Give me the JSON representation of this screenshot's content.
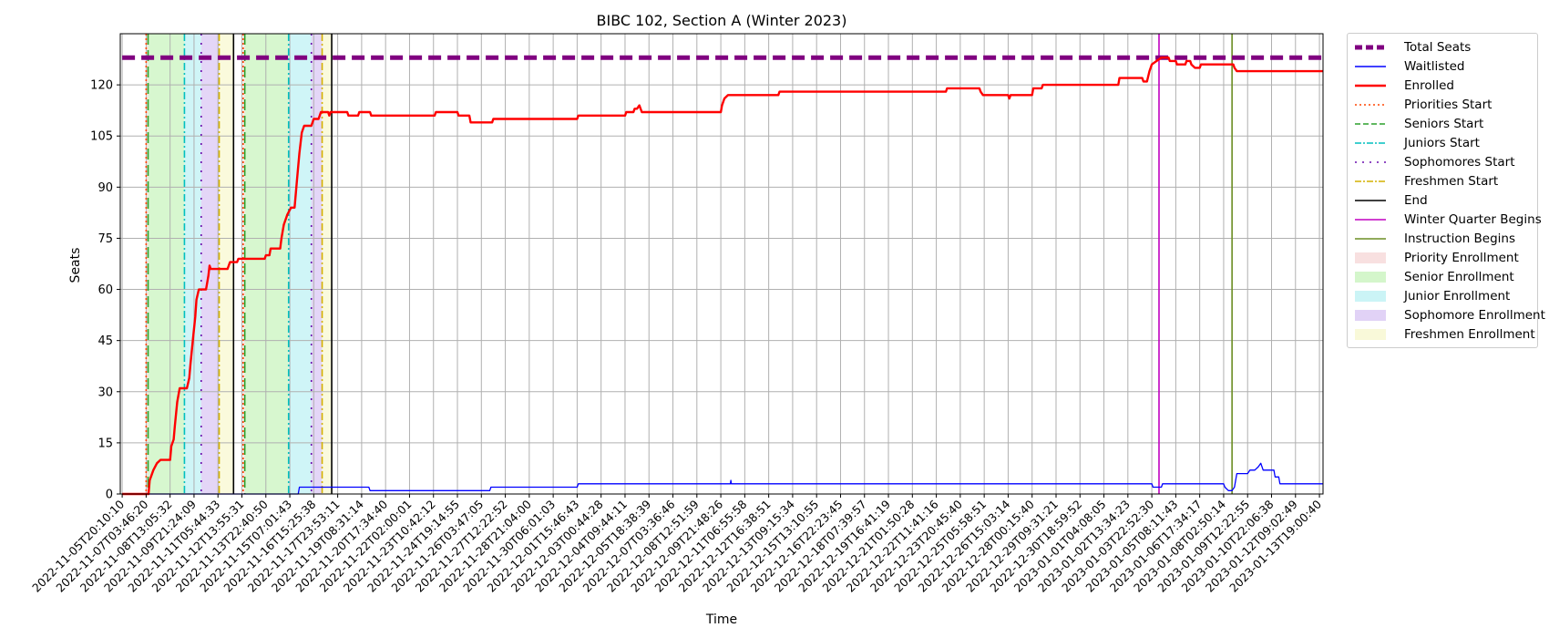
{
  "chart_data": {
    "type": "line",
    "title": "BIBC 102, Section A (Winter 2023)",
    "xlabel": "Time",
    "ylabel": "Seats",
    "ylim": [
      0,
      135
    ],
    "yticks": [
      0,
      15,
      30,
      45,
      60,
      75,
      90,
      105,
      120
    ],
    "grid": true,
    "legend_placement": "outside-right",
    "x_tick_labels": [
      "2022-11-05T20:10:10",
      "2022-11-07T03:46:20",
      "2022-11-08T13:05:32",
      "2022-11-09T21:24:09",
      "2022-11-11T05:44:33",
      "2022-11-12T13:55:31",
      "2022-11-13T22:40:50",
      "2022-11-15T07:01:43",
      "2022-11-16T15:25:38",
      "2022-11-17T23:53:11",
      "2022-11-19T08:31:14",
      "2022-11-20T17:34:40",
      "2022-11-22T02:00:01",
      "2022-11-23T10:42:12",
      "2022-11-24T19:14:55",
      "2022-11-26T03:47:05",
      "2022-11-27T12:22:52",
      "2022-11-28T21:04:00",
      "2022-11-30T06:01:03",
      "2022-12-01T15:46:43",
      "2022-12-03T00:44:28",
      "2022-12-04T09:44:11",
      "2022-12-05T18:38:39",
      "2022-12-07T03:36:46",
      "2022-12-08T12:51:59",
      "2022-12-09T21:48:26",
      "2022-12-11T06:55:58",
      "2022-12-12T16:38:51",
      "2022-12-13T09:15:34",
      "2022-12-15T13:10:55",
      "2022-12-16T22:23:45",
      "2022-12-18T07:39:57",
      "2022-12-19T16:41:19",
      "2022-12-21T01:50:28",
      "2022-12-22T11:41:16",
      "2022-12-23T20:45:40",
      "2022-12-25T05:58:51",
      "2022-12-26T15:03:14",
      "2022-12-28T00:15:40",
      "2022-12-29T09:31:21",
      "2022-12-30T18:59:52",
      "2023-01-01T04:08:05",
      "2023-01-02T13:34:23",
      "2023-01-03T22:52:30",
      "2023-01-05T08:11:43",
      "2023-01-06T17:34:17",
      "2023-01-08T02:50:14",
      "2023-01-09T12:22:55",
      "2023-01-10T22:06:38",
      "2023-01-12T09:02:49",
      "2023-01-13T19:00:40"
    ],
    "x_index_max": 50.15,
    "series": [
      {
        "name": "Total Seats",
        "color": "#800080",
        "style": "dashed",
        "points": [
          [
            0,
            128
          ],
          [
            50.15,
            128
          ]
        ]
      },
      {
        "name": "Waitlisted",
        "color": "#0000ff",
        "style": "solid",
        "points": [
          [
            0,
            0
          ],
          [
            7.35,
            0
          ],
          [
            7.4,
            2
          ],
          [
            10.3,
            2
          ],
          [
            10.35,
            1
          ],
          [
            15.35,
            1
          ],
          [
            15.4,
            2
          ],
          [
            19.0,
            2
          ],
          [
            19.05,
            3
          ],
          [
            25.4,
            3
          ],
          [
            25.42,
            4
          ],
          [
            25.44,
            3
          ],
          [
            43.0,
            3
          ],
          [
            43.05,
            2
          ],
          [
            43.4,
            2
          ],
          [
            43.45,
            3
          ],
          [
            46.0,
            3
          ],
          [
            46.05,
            2
          ],
          [
            46.2,
            1
          ],
          [
            46.35,
            1
          ],
          [
            46.45,
            2
          ],
          [
            46.55,
            6
          ],
          [
            47.0,
            6
          ],
          [
            47.1,
            7
          ],
          [
            47.3,
            7
          ],
          [
            47.45,
            8
          ],
          [
            47.55,
            9
          ],
          [
            47.65,
            7
          ],
          [
            48.1,
            7
          ],
          [
            48.15,
            5
          ],
          [
            48.3,
            5
          ],
          [
            48.35,
            3
          ],
          [
            50.15,
            3
          ]
        ]
      },
      {
        "name": "Enrolled",
        "color": "#ff0000",
        "style": "solid",
        "points": [
          [
            0,
            0
          ],
          [
            1.1,
            0
          ],
          [
            1.15,
            4
          ],
          [
            1.3,
            7
          ],
          [
            1.45,
            9
          ],
          [
            1.6,
            10
          ],
          [
            2.0,
            10
          ],
          [
            2.05,
            14
          ],
          [
            2.15,
            16
          ],
          [
            2.2,
            20
          ],
          [
            2.3,
            27
          ],
          [
            2.4,
            31
          ],
          [
            2.7,
            31
          ],
          [
            2.8,
            34
          ],
          [
            2.85,
            38
          ],
          [
            2.95,
            45
          ],
          [
            3.05,
            52
          ],
          [
            3.1,
            57
          ],
          [
            3.2,
            60
          ],
          [
            3.5,
            60
          ],
          [
            3.6,
            64
          ],
          [
            3.65,
            67
          ],
          [
            3.7,
            66
          ],
          [
            4.05,
            66
          ],
          [
            4.4,
            66
          ],
          [
            4.5,
            68
          ],
          [
            4.8,
            68
          ],
          [
            4.85,
            69
          ],
          [
            5.95,
            69
          ],
          [
            6.0,
            70
          ],
          [
            6.15,
            70
          ],
          [
            6.2,
            72
          ],
          [
            6.6,
            72
          ],
          [
            6.65,
            75
          ],
          [
            6.75,
            79
          ],
          [
            6.9,
            82
          ],
          [
            7.05,
            84
          ],
          [
            7.2,
            84
          ],
          [
            7.3,
            92
          ],
          [
            7.4,
            100
          ],
          [
            7.5,
            106
          ],
          [
            7.6,
            108
          ],
          [
            7.9,
            108
          ],
          [
            8.0,
            110
          ],
          [
            8.2,
            110
          ],
          [
            8.3,
            112
          ],
          [
            8.6,
            112
          ],
          [
            8.65,
            111
          ],
          [
            8.7,
            112
          ],
          [
            9.4,
            112
          ],
          [
            9.45,
            111
          ],
          [
            9.85,
            111
          ],
          [
            9.9,
            112
          ],
          [
            10.35,
            112
          ],
          [
            10.4,
            111
          ],
          [
            13.05,
            111
          ],
          [
            13.1,
            112
          ],
          [
            14.0,
            112
          ],
          [
            14.05,
            111
          ],
          [
            14.5,
            111
          ],
          [
            14.55,
            109
          ],
          [
            15.45,
            109
          ],
          [
            15.5,
            110
          ],
          [
            19.0,
            110
          ],
          [
            19.05,
            111
          ],
          [
            21.0,
            111
          ],
          [
            21.05,
            112
          ],
          [
            21.35,
            112
          ],
          [
            21.4,
            113
          ],
          [
            21.5,
            113
          ],
          [
            21.6,
            114
          ],
          [
            21.7,
            112
          ],
          [
            25.0,
            112
          ],
          [
            25.05,
            114
          ],
          [
            25.15,
            116
          ],
          [
            25.3,
            117
          ],
          [
            27.4,
            117
          ],
          [
            27.45,
            118
          ],
          [
            34.4,
            118
          ],
          [
            34.45,
            119
          ],
          [
            35.8,
            119
          ],
          [
            35.85,
            118
          ],
          [
            35.95,
            117
          ],
          [
            37.0,
            117
          ],
          [
            37.05,
            116
          ],
          [
            37.1,
            117
          ],
          [
            38.0,
            117
          ],
          [
            38.05,
            119
          ],
          [
            38.4,
            119
          ],
          [
            38.45,
            120
          ],
          [
            41.6,
            120
          ],
          [
            41.65,
            122
          ],
          [
            42.6,
            122
          ],
          [
            42.65,
            121
          ],
          [
            42.8,
            121
          ],
          [
            42.9,
            124
          ],
          [
            43.0,
            126
          ],
          [
            43.2,
            127
          ],
          [
            43.4,
            128
          ],
          [
            43.7,
            128
          ],
          [
            43.75,
            127
          ],
          [
            44.0,
            127
          ],
          [
            44.05,
            126
          ],
          [
            44.4,
            126
          ],
          [
            44.45,
            127
          ],
          [
            44.6,
            127
          ],
          [
            44.65,
            126
          ],
          [
            44.8,
            125
          ],
          [
            45.0,
            125
          ],
          [
            45.05,
            126
          ],
          [
            46.4,
            126
          ],
          [
            46.45,
            125
          ],
          [
            46.55,
            124
          ],
          [
            50.15,
            124
          ]
        ]
      }
    ],
    "vertical_lines": [
      {
        "name": "Priorities Start",
        "color": "#ff4500",
        "style": "dotted",
        "x": [
          1.0,
          5.05
        ]
      },
      {
        "name": "Seniors Start",
        "color": "#2ca02c",
        "style": "dashed",
        "x": [
          1.08,
          5.12
        ]
      },
      {
        "name": "Juniors Start",
        "color": "#00bfbf",
        "style": "dashdot",
        "x": [
          2.6,
          6.95
        ]
      },
      {
        "name": "Sophomores Start",
        "color": "#6a0dad",
        "style": "dashdotted",
        "x": [
          3.3,
          7.9
        ]
      },
      {
        "name": "Freshmen Start",
        "color": "#d4b000",
        "style": "dashdot",
        "x": [
          4.05,
          8.35
        ]
      },
      {
        "name": "End",
        "color": "#000000",
        "style": "solid",
        "x": [
          4.65,
          8.75
        ]
      },
      {
        "name": "Winter Quarter Begins",
        "color": "#c000c0",
        "style": "solid",
        "x": [
          43.3
        ]
      },
      {
        "name": "Instruction Begins",
        "color": "#6b8e23",
        "style": "solid",
        "x": [
          46.35
        ]
      }
    ],
    "enrollment_periods": [
      {
        "name": "Priority Enrollment",
        "color": "#f4cccc",
        "ranges": [
          [
            1.0,
            1.08
          ],
          [
            5.05,
            5.12
          ]
        ]
      },
      {
        "name": "Senior Enrollment",
        "color": "#b7f0a8",
        "ranges": [
          [
            1.08,
            2.6
          ],
          [
            5.12,
            6.95
          ]
        ]
      },
      {
        "name": "Junior Enrollment",
        "color": "#a8ecf0",
        "ranges": [
          [
            2.6,
            3.3
          ],
          [
            6.95,
            7.9
          ]
        ]
      },
      {
        "name": "Sophomore Enrollment",
        "color": "#cdb4f0",
        "ranges": [
          [
            3.3,
            4.05
          ],
          [
            7.9,
            8.35
          ]
        ]
      },
      {
        "name": "Freshmen Enrollment",
        "color": "#f5f5c0",
        "ranges": [
          [
            4.05,
            4.65
          ],
          [
            8.35,
            8.75
          ]
        ]
      }
    ]
  },
  "legend": {
    "items": [
      {
        "label": "Total Seats",
        "kind": "line",
        "color": "#800080",
        "style": "dashed",
        "width": 5
      },
      {
        "label": "Waitlisted",
        "kind": "line",
        "color": "#0000ff",
        "style": "solid",
        "width": 1.5
      },
      {
        "label": "Enrolled",
        "kind": "line",
        "color": "#ff0000",
        "style": "solid",
        "width": 2.5
      },
      {
        "label": "Priorities Start",
        "kind": "line",
        "color": "#ff4500",
        "style": "dotted",
        "width": 1.5
      },
      {
        "label": "Seniors Start",
        "kind": "line",
        "color": "#2ca02c",
        "style": "dashed",
        "width": 1.5
      },
      {
        "label": "Juniors Start",
        "kind": "line",
        "color": "#00bfbf",
        "style": "dashdot",
        "width": 1.5
      },
      {
        "label": "Sophomores Start",
        "kind": "line",
        "color": "#6a0dad",
        "style": "dashdotted",
        "width": 1.5
      },
      {
        "label": "Freshmen Start",
        "kind": "line",
        "color": "#d4b000",
        "style": "dashdot",
        "width": 1.5
      },
      {
        "label": "End",
        "kind": "line",
        "color": "#000000",
        "style": "solid",
        "width": 1.5
      },
      {
        "label": "Winter Quarter Begins",
        "kind": "line",
        "color": "#c000c0",
        "style": "solid",
        "width": 1.5
      },
      {
        "label": "Instruction Begins",
        "kind": "line",
        "color": "#6b8e23",
        "style": "solid",
        "width": 1.5
      },
      {
        "label": "Priority Enrollment",
        "kind": "patch",
        "color": "#f4cccc"
      },
      {
        "label": "Senior Enrollment",
        "kind": "patch",
        "color": "#b7f0a8"
      },
      {
        "label": "Junior Enrollment",
        "kind": "patch",
        "color": "#a8ecf0"
      },
      {
        "label": "Sophomore Enrollment",
        "kind": "patch",
        "color": "#cdb4f0"
      },
      {
        "label": "Freshmen Enrollment",
        "kind": "patch",
        "color": "#f5f5c0"
      }
    ]
  }
}
